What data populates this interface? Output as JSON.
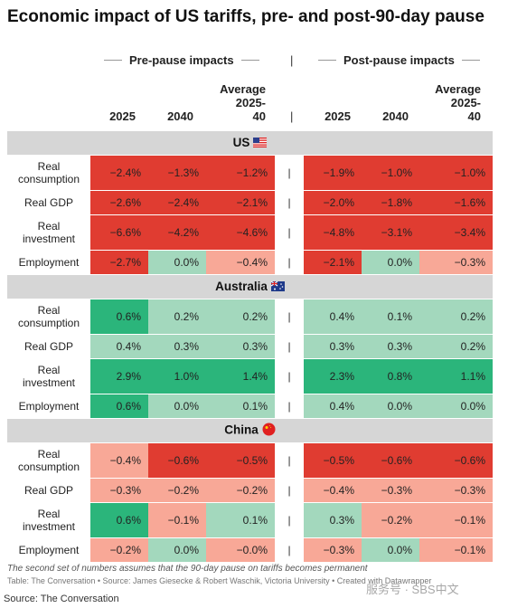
{
  "title": "Economic impact of US tariffs, pre- and post-90-day pause",
  "groups": {
    "pre": "Pre-pause impacts",
    "post": "Post-pause impacts",
    "pipe": "|"
  },
  "columns": {
    "y2025": "2025",
    "y2040": "2040",
    "avg": [
      "Average",
      "2025-",
      "40"
    ]
  },
  "colors": {
    "red_strong": "#e03c31",
    "red_light": "#f8a897",
    "green_strong": "#2bb57b",
    "green_light": "#a3d8bd",
    "section_bg": "#d6d6d6"
  },
  "sections": [
    {
      "name": "US",
      "flag": "us-flag-icon",
      "rows": [
        {
          "label": [
            "Real",
            "consumption"
          ],
          "pre": [
            "-2.4%",
            "-1.3%",
            "-1.2%"
          ],
          "post": [
            "-1.9%",
            "-1.0%",
            "-1.0%"
          ],
          "pre_tone": [
            "rs",
            "rs",
            "rs"
          ],
          "post_tone": [
            "rs",
            "rs",
            "rs"
          ]
        },
        {
          "label": [
            "Real GDP"
          ],
          "pre": [
            "-2.6%",
            "-2.4%",
            "-2.1%"
          ],
          "post": [
            "-2.0%",
            "-1.8%",
            "-1.6%"
          ],
          "pre_tone": [
            "rs",
            "rs",
            "rs"
          ],
          "post_tone": [
            "rs",
            "rs",
            "rs"
          ]
        },
        {
          "label": [
            "Real",
            "investment"
          ],
          "pre": [
            "-6.6%",
            "-4.2%",
            "-4.6%"
          ],
          "post": [
            "-4.8%",
            "-3.1%",
            "-3.4%"
          ],
          "pre_tone": [
            "rs",
            "rs",
            "rs"
          ],
          "post_tone": [
            "rs",
            "rs",
            "rs"
          ]
        },
        {
          "label": [
            "Employment"
          ],
          "pre": [
            "-2.7%",
            "0.0%",
            "-0.4%"
          ],
          "post": [
            "-2.1%",
            "0.0%",
            "-0.3%"
          ],
          "pre_tone": [
            "rs",
            "gl",
            "rl"
          ],
          "post_tone": [
            "rs",
            "gl",
            "rl"
          ]
        }
      ]
    },
    {
      "name": "Australia",
      "flag": "australia-flag-icon",
      "rows": [
        {
          "label": [
            "Real",
            "consumption"
          ],
          "pre": [
            "0.6%",
            "0.2%",
            "0.2%"
          ],
          "post": [
            "0.4%",
            "0.1%",
            "0.2%"
          ],
          "pre_tone": [
            "gs",
            "gl",
            "gl"
          ],
          "post_tone": [
            "gl",
            "gl",
            "gl"
          ]
        },
        {
          "label": [
            "Real GDP"
          ],
          "pre": [
            "0.4%",
            "0.3%",
            "0.3%"
          ],
          "post": [
            "0.3%",
            "0.3%",
            "0.2%"
          ],
          "pre_tone": [
            "gl",
            "gl",
            "gl"
          ],
          "post_tone": [
            "gl",
            "gl",
            "gl"
          ]
        },
        {
          "label": [
            "Real",
            "investment"
          ],
          "pre": [
            "2.9%",
            "1.0%",
            "1.4%"
          ],
          "post": [
            "2.3%",
            "0.8%",
            "1.1%"
          ],
          "pre_tone": [
            "gs",
            "gs",
            "gs"
          ],
          "post_tone": [
            "gs",
            "gs",
            "gs"
          ]
        },
        {
          "label": [
            "Employment"
          ],
          "pre": [
            "0.6%",
            "0.0%",
            "0.1%"
          ],
          "post": [
            "0.4%",
            "0.0%",
            "0.0%"
          ],
          "pre_tone": [
            "gs",
            "gl",
            "gl"
          ],
          "post_tone": [
            "gl",
            "gl",
            "gl"
          ]
        }
      ]
    },
    {
      "name": "China",
      "flag": "china-flag-icon",
      "rows": [
        {
          "label": [
            "Real",
            "consumption"
          ],
          "pre": [
            "-0.4%",
            "-0.6%",
            "-0.5%"
          ],
          "post": [
            "-0.5%",
            "-0.6%",
            "-0.6%"
          ],
          "pre_tone": [
            "rl",
            "rs",
            "rs"
          ],
          "post_tone": [
            "rs",
            "rs",
            "rs"
          ]
        },
        {
          "label": [
            "Real GDP"
          ],
          "pre": [
            "-0.3%",
            "-0.2%",
            "-0.2%"
          ],
          "post": [
            "-0.4%",
            "-0.3%",
            "-0.3%"
          ],
          "pre_tone": [
            "rl",
            "rl",
            "rl"
          ],
          "post_tone": [
            "rl",
            "rl",
            "rl"
          ]
        },
        {
          "label": [
            "Real",
            "investment"
          ],
          "pre": [
            "0.6%",
            "-0.1%",
            "0.1%"
          ],
          "post": [
            "0.3%",
            "-0.2%",
            "-0.1%"
          ],
          "pre_tone": [
            "gs",
            "rl",
            "gl"
          ],
          "post_tone": [
            "gl",
            "rl",
            "rl"
          ]
        },
        {
          "label": [
            "Employment"
          ],
          "pre": [
            "-0.2%",
            "0.0%",
            "-0.0%"
          ],
          "post": [
            "-0.3%",
            "0.0%",
            "-0.1%"
          ],
          "pre_tone": [
            "rl",
            "gl",
            "rl"
          ],
          "post_tone": [
            "rl",
            "gl",
            "rl"
          ]
        }
      ]
    }
  ],
  "footnote": "The second set of numbers assumes that the 90-day pause on tariffs becomes permanent",
  "credits": "Table: The Conversation • Source: James Giesecke & Robert Waschik, Victoria University • Created with Datawrapper",
  "source": "Source: The Conversation",
  "watermark": "服务号 · SBS中文"
}
